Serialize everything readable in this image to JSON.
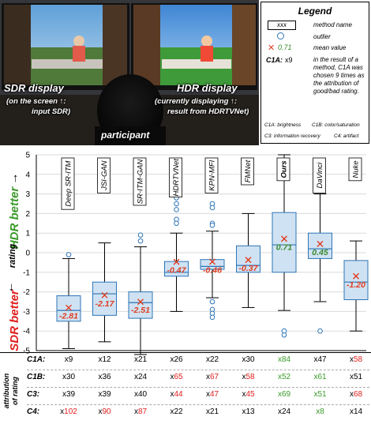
{
  "photo": {
    "left_label": "SDR display",
    "left_note1": "(on the screen ↑:",
    "left_note2": "input SDR)",
    "right_label": "HDR display",
    "right_note1": "(currently displaying ↑:",
    "right_note2": "result from HDRTVNet)",
    "participant": "participant"
  },
  "legend": {
    "title": "Legend",
    "method_box": "xxx",
    "method_desc": "method name",
    "outlier_desc": "outlier",
    "mean_example": "0.71",
    "mean_desc": "mean value",
    "attr_example_bold": "C1A:",
    "attr_example_count": "x9",
    "attr_desc_1": "in the result of a",
    "attr_desc_2": "method, C1A was",
    "attr_desc_3": "chosen 9 times as",
    "attr_desc_4": "the attribution of",
    "attr_desc_5": "good/bad rating.",
    "code_1": "C1A: brightness",
    "code_2": "C1B: color/saturation",
    "code_3": "C3: information recovery",
    "code_4": "C4: artifact"
  },
  "colors": {
    "box_fill": "#cfe2f3",
    "box_stroke": "#2e75b6",
    "mean_red": "#e03c1e",
    "mean_green": "#3a8a2e",
    "hdr_green": "#3a9a2a",
    "sdr_red": "#e01e1e"
  },
  "chart_data": {
    "type": "boxplot",
    "ylabel": "rating",
    "y_top_label": "HDR better",
    "y_bottom_label": "SDR better",
    "y_ticks": [
      "5",
      "4",
      "3",
      "2",
      "1",
      "0",
      "-1",
      "-2",
      "-3",
      "-4",
      "-5"
    ],
    "ylim": [
      -5,
      5
    ],
    "grid": true,
    "methods": [
      {
        "name": "Deep SR-ITM",
        "q1": -3.5,
        "median": -2.95,
        "q3": -2.2,
        "whisker_low": -4.9,
        "whisker_high": -0.3,
        "outliers": [
          -0.1
        ],
        "mean": -2.81,
        "mean_label": "-2.81",
        "mean_color": "red"
      },
      {
        "name": "JSI-GAN",
        "q1": -3.2,
        "median": -2.1,
        "q3": -1.5,
        "whisker_low": -4.55,
        "whisker_high": 0.5,
        "outliers": [],
        "mean": -2.17,
        "mean_label": "-2.17",
        "mean_color": "red"
      },
      {
        "name": "SR-ITM-GAN",
        "q1": -3.35,
        "median": -2.55,
        "q3": -2.0,
        "whisker_low": -5.2,
        "whisker_high": 0.3,
        "outliers": [
          0.9,
          0.6
        ],
        "mean": -2.51,
        "mean_label": "-2.51",
        "mean_color": "red"
      },
      {
        "name": "HDRTVNet",
        "q1": -1.2,
        "median": -1.0,
        "q3": -0.45,
        "whisker_low": -3.0,
        "whisker_high": 1.0,
        "outliers": [
          4.1,
          3.8,
          3.6,
          3.3,
          2.8,
          2.5,
          2.2,
          1.7,
          1.5
        ],
        "mean": -0.47,
        "mean_label": "-0.47",
        "mean_color": "red"
      },
      {
        "name": "KPN-MFI",
        "q1": -0.85,
        "median": -0.7,
        "q3": -0.35,
        "whisker_low": -2.3,
        "whisker_high": 1.1,
        "outliers": [
          2.5,
          2.3,
          1.5,
          1.4,
          -2.5,
          -2.9,
          -3.1,
          -3.3
        ],
        "mean": -0.46,
        "mean_label": "-0.46",
        "mean_color": "red"
      },
      {
        "name": "FMNet",
        "q1": -1.0,
        "median": -0.65,
        "q3": 0.35,
        "whisker_low": -2.8,
        "whisker_high": 2.0,
        "outliers": [
          3.8
        ],
        "mean": -0.37,
        "mean_label": "-0.37",
        "mean_color": "red"
      },
      {
        "name": "Ours",
        "q1": -1.0,
        "median": 0.4,
        "q3": 2.05,
        "whisker_low": -2.95,
        "whisker_high": 5.0,
        "outliers": [
          -4.0,
          -4.2
        ],
        "mean": 0.71,
        "mean_label": "0.71",
        "mean_color": "green"
      },
      {
        "name": "DaVinci",
        "q1": -0.3,
        "median": 0.2,
        "q3": 1.0,
        "whisker_low": -2.5,
        "whisker_high": 3.0,
        "outliers": [
          4.3,
          4.1,
          3.7,
          3.5,
          -4.0
        ],
        "mean": 0.45,
        "mean_label": "0.45",
        "mean_color": "green"
      },
      {
        "name": "Nuke",
        "q1": -2.4,
        "median": -1.5,
        "q3": -0.4,
        "whisker_low": -4.0,
        "whisker_high": 0.6,
        "outliers": [
          4.0
        ],
        "mean": -1.2,
        "mean_label": "-1.20",
        "mean_color": "red"
      }
    ]
  },
  "attribution": {
    "title_1": "attribution",
    "title_2": "of rating",
    "rows": [
      {
        "label": "C1A:",
        "cells": [
          {
            "p": "x",
            "n": "9",
            "c": "black"
          },
          {
            "p": "x",
            "n": "12",
            "c": "black"
          },
          {
            "p": "x",
            "n": "21",
            "c": "black"
          },
          {
            "p": "x",
            "n": "26",
            "c": "black"
          },
          {
            "p": "x",
            "n": "22",
            "c": "black"
          },
          {
            "p": "x",
            "n": "30",
            "c": "black"
          },
          {
            "p": "x",
            "n": "84",
            "c": "green"
          },
          {
            "p": "x",
            "n": "47",
            "c": "black"
          },
          {
            "p": "x",
            "n": "58",
            "c": "red"
          }
        ]
      },
      {
        "label": "C1B:",
        "cells": [
          {
            "p": "x",
            "n": "30",
            "c": "black"
          },
          {
            "p": "x",
            "n": "36",
            "c": "black"
          },
          {
            "p": "x",
            "n": "24",
            "c": "black"
          },
          {
            "p": "x",
            "n": "65",
            "c": "red"
          },
          {
            "p": "x",
            "n": "67",
            "c": "red"
          },
          {
            "p": "x",
            "n": "58",
            "c": "red"
          },
          {
            "p": "x",
            "n": "52",
            "c": "green"
          },
          {
            "p": "x",
            "n": "61",
            "c": "green"
          },
          {
            "p": "x",
            "n": "51",
            "c": "black"
          }
        ]
      },
      {
        "label": "C3:",
        "cells": [
          {
            "p": "x",
            "n": "39",
            "c": "black"
          },
          {
            "p": "x",
            "n": "39",
            "c": "black"
          },
          {
            "p": "x",
            "n": "40",
            "c": "black"
          },
          {
            "p": "x",
            "n": "44",
            "c": "red"
          },
          {
            "p": "x",
            "n": "47",
            "c": "red"
          },
          {
            "p": "x",
            "n": "45",
            "c": "red"
          },
          {
            "p": "x",
            "n": "69",
            "c": "green"
          },
          {
            "p": "x",
            "n": "51",
            "c": "green"
          },
          {
            "p": "x",
            "n": "68",
            "c": "red"
          }
        ]
      },
      {
        "label": "C4:",
        "cells": [
          {
            "p": "x",
            "n": "102",
            "c": "red"
          },
          {
            "p": "x",
            "n": "90",
            "c": "red"
          },
          {
            "p": "x",
            "n": "87",
            "c": "red"
          },
          {
            "p": "x",
            "n": "22",
            "c": "black"
          },
          {
            "p": "x",
            "n": "21",
            "c": "black"
          },
          {
            "p": "x",
            "n": "13",
            "c": "black"
          },
          {
            "p": "x",
            "n": "24",
            "c": "black"
          },
          {
            "p": "x",
            "n": "8",
            "c": "green"
          },
          {
            "p": "x",
            "n": "14",
            "c": "black"
          }
        ]
      }
    ]
  }
}
